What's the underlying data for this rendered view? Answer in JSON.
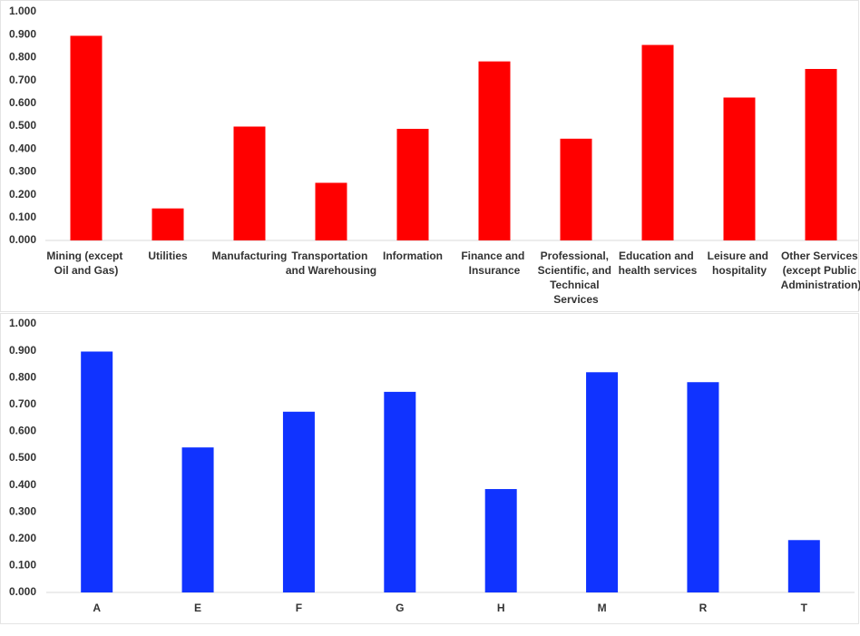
{
  "chart_data": [
    {
      "type": "bar",
      "color": "#ff0000",
      "categories": [
        "Mining (except Oil and Gas)",
        "Utilities",
        "Manufacturing",
        "Transportation and Warehousing",
        "Information",
        "Finance and Insurance",
        "Professional, Scientific, and Technical Services",
        "Education and health services",
        "Leisure and hospitality",
        "Other Services (except Public Administration)"
      ],
      "values": [
        0.895,
        0.14,
        0.498,
        0.252,
        0.488,
        0.783,
        0.445,
        0.855,
        0.625,
        0.75
      ],
      "ylim": [
        0,
        1
      ],
      "yticks": [
        {
          "value": 0,
          "label": "0.000"
        },
        {
          "value": 0.1,
          "label": "0.100"
        },
        {
          "value": 0.2,
          "label": "0.200"
        },
        {
          "value": 0.3,
          "label": "0.300"
        },
        {
          "value": 0.4,
          "label": "0.400"
        },
        {
          "value": 0.5,
          "label": "0.500"
        },
        {
          "value": 0.6,
          "label": "0.600"
        },
        {
          "value": 0.7,
          "label": "0.700"
        },
        {
          "value": 0.8,
          "label": "0.800"
        },
        {
          "value": 0.9,
          "label": "0.900"
        },
        {
          "value": 1,
          "label": "1.000"
        }
      ],
      "grid": false
    },
    {
      "type": "bar",
      "color": "#1033ff",
      "categories": [
        "A",
        "E",
        "F",
        "G",
        "H",
        "M",
        "R",
        "T"
      ],
      "values": [
        0.897,
        0.54,
        0.673,
        0.747,
        0.385,
        0.82,
        0.783,
        0.195
      ],
      "ylim": [
        0,
        1
      ],
      "yticks": [
        {
          "value": 0,
          "label": "0.000"
        },
        {
          "value": 0.1,
          "label": "0.100"
        },
        {
          "value": 0.2,
          "label": "0.200"
        },
        {
          "value": 0.3,
          "label": "0.300"
        },
        {
          "value": 0.4,
          "label": "0.400"
        },
        {
          "value": 0.5,
          "label": "0.500"
        },
        {
          "value": 0.6,
          "label": "0.600"
        },
        {
          "value": 0.7,
          "label": "0.700"
        },
        {
          "value": 0.8,
          "label": "0.800"
        },
        {
          "value": 0.9,
          "label": "0.900"
        },
        {
          "value": 1,
          "label": "1.000"
        }
      ],
      "grid": false
    }
  ]
}
